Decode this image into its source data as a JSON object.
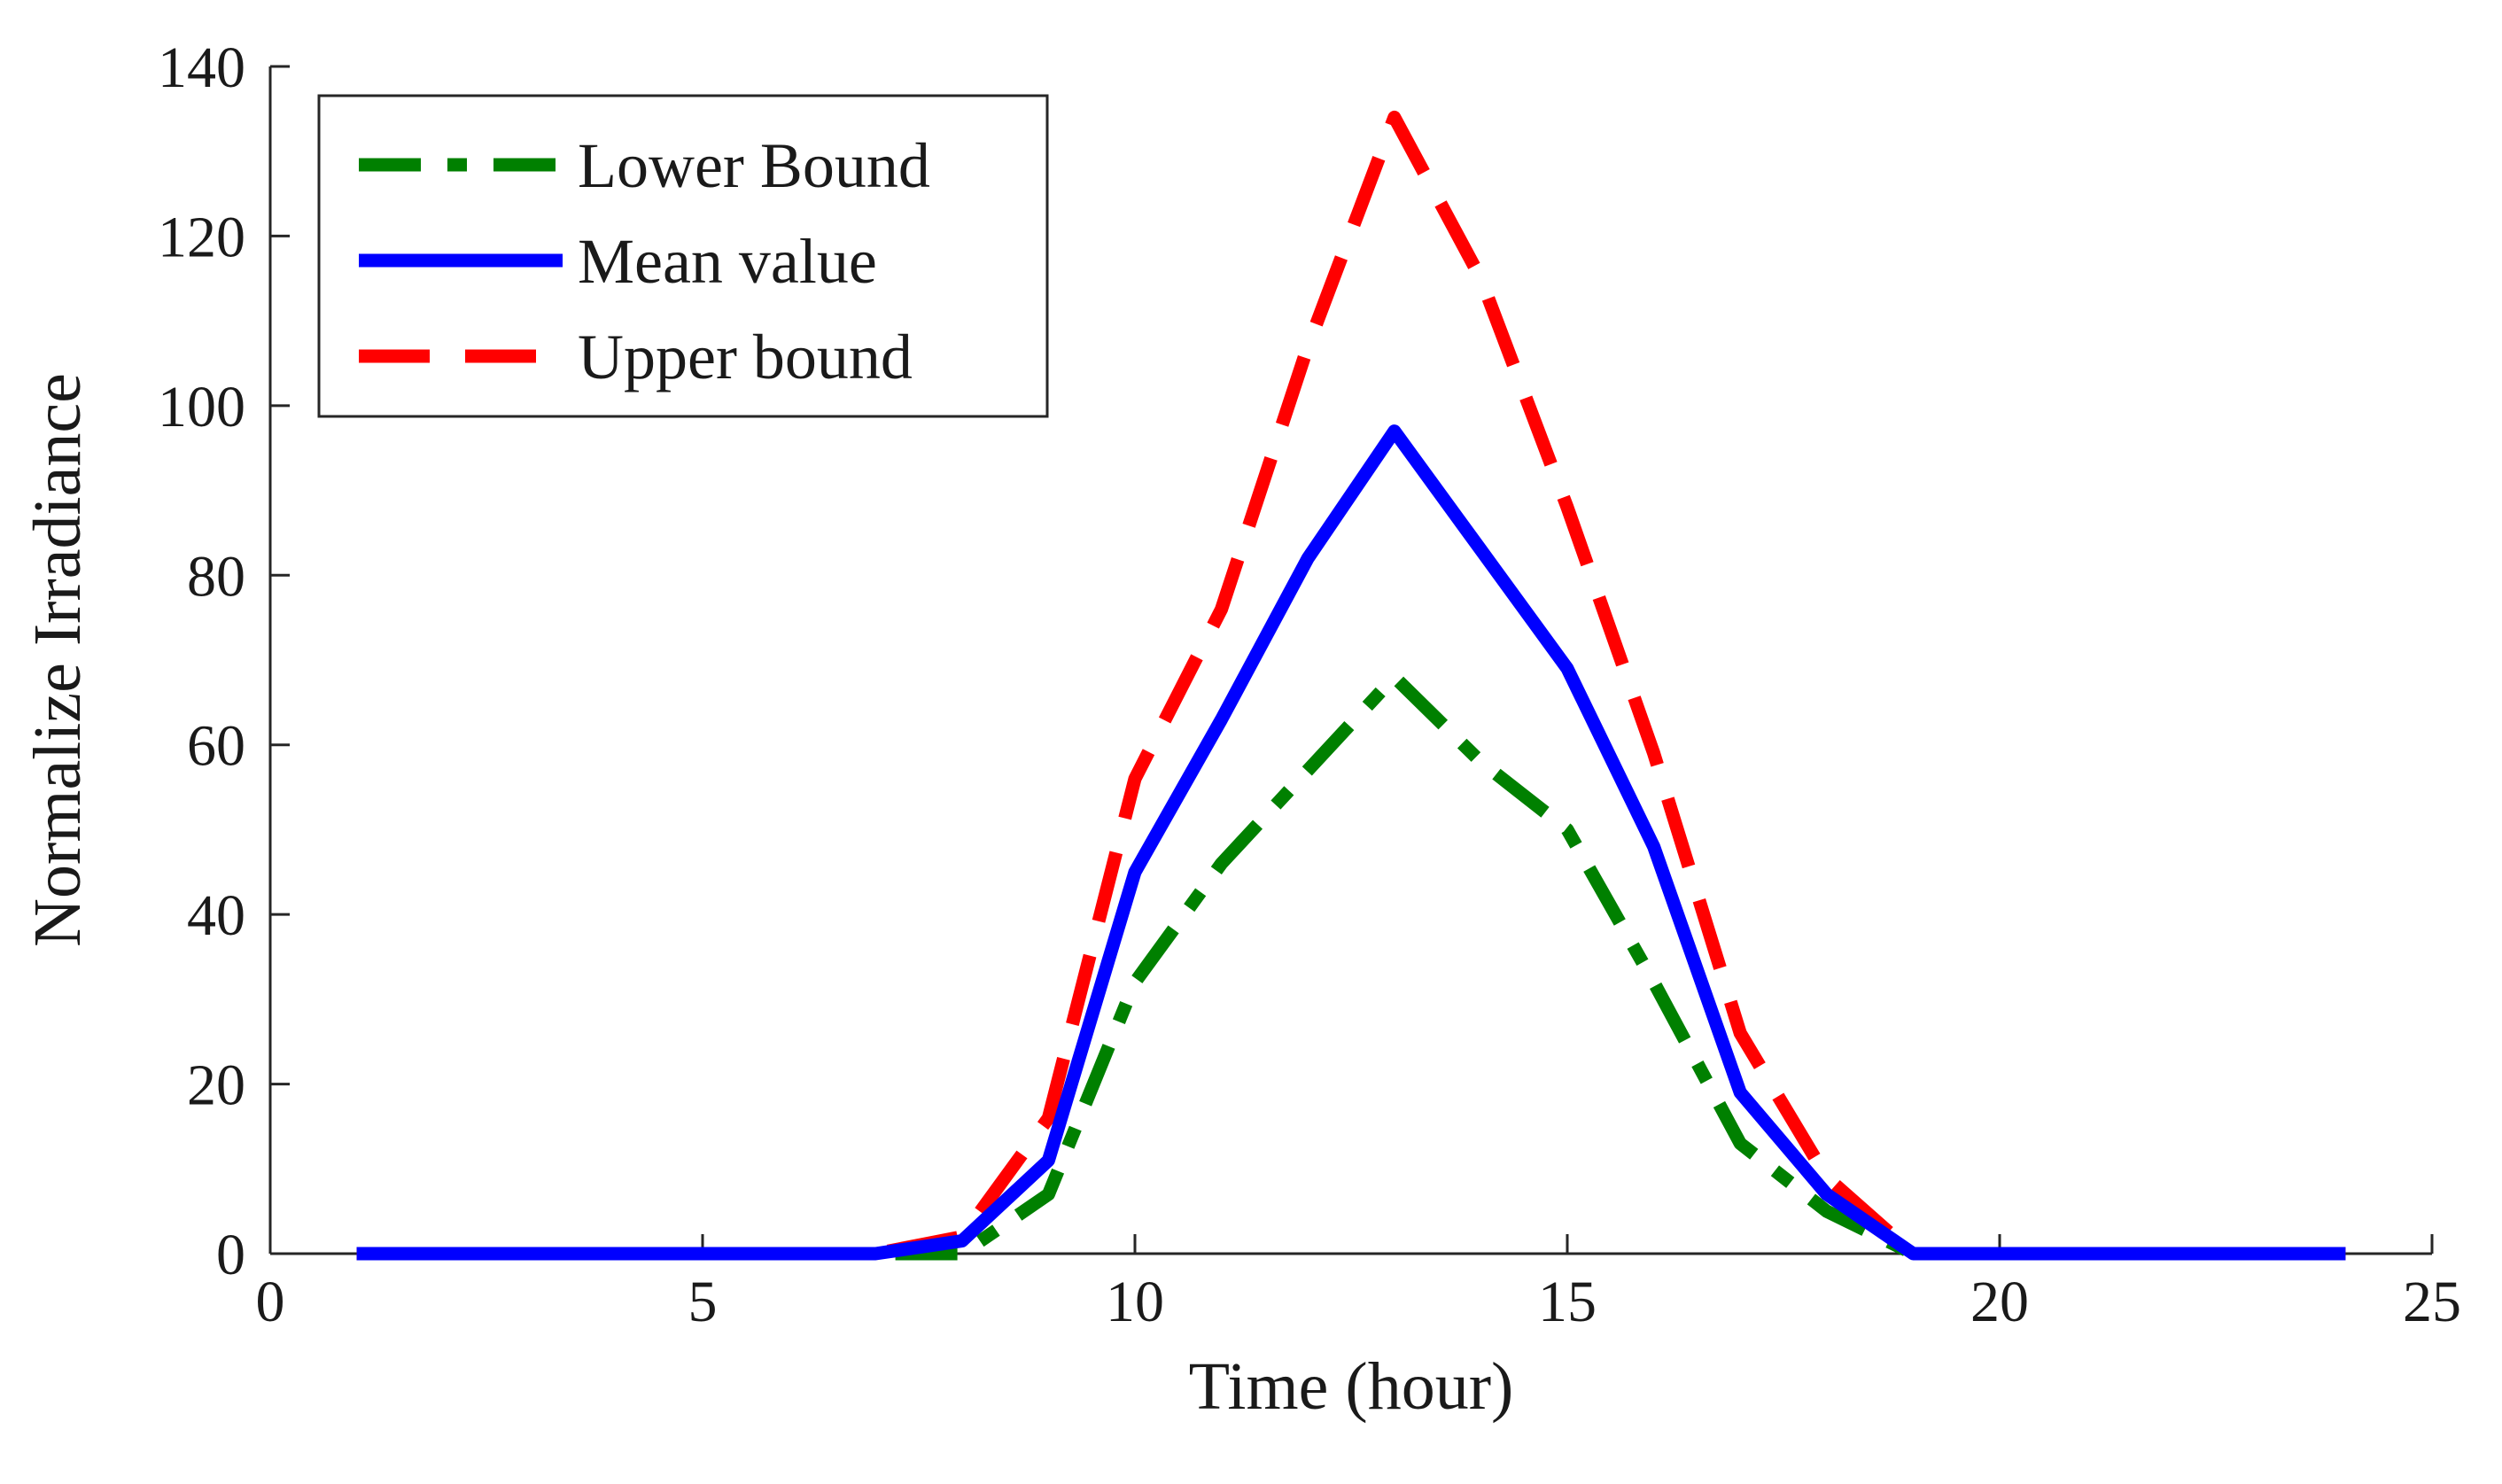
{
  "chart_data": {
    "type": "line",
    "title": "",
    "xlabel": "Time (hour)",
    "ylabel": "Normalize Irradiance",
    "xlim": [
      0,
      25
    ],
    "ylim": [
      0,
      140
    ],
    "xticks": [
      0,
      5,
      10,
      15,
      20,
      25
    ],
    "yticks": [
      0,
      20,
      40,
      60,
      80,
      100,
      120,
      140
    ],
    "grid": false,
    "legend_position": "top-left",
    "x": [
      1,
      2,
      3,
      4,
      5,
      6,
      7,
      8,
      9,
      10,
      11,
      12,
      13,
      14,
      15,
      16,
      17,
      18,
      19,
      20,
      21,
      22,
      23,
      24
    ],
    "series": [
      {
        "name": "Lower Bound",
        "color": "#008000",
        "style": "dash-dot",
        "values": [
          0,
          0,
          0,
          0,
          0,
          0,
          0,
          0,
          7,
          32,
          46,
          57,
          68,
          58,
          50,
          32,
          13,
          5,
          0,
          0,
          0,
          0,
          0,
          0
        ]
      },
      {
        "name": "Mean value",
        "color": "#0000ff",
        "style": "solid",
        "values": [
          0,
          0,
          0,
          0,
          0,
          0,
          0,
          1.5,
          11,
          45,
          63,
          82,
          97,
          83,
          69,
          48,
          19,
          7,
          0,
          0,
          0,
          0,
          0,
          0
        ]
      },
      {
        "name": "Upper bound",
        "color": "#ff0000",
        "style": "dashed",
        "values": [
          0,
          0,
          0,
          0,
          0,
          0,
          0,
          2,
          16,
          56,
          76,
          107,
          134,
          115,
          88,
          59,
          26,
          9,
          0,
          0,
          0,
          0,
          0,
          0
        ]
      }
    ]
  }
}
